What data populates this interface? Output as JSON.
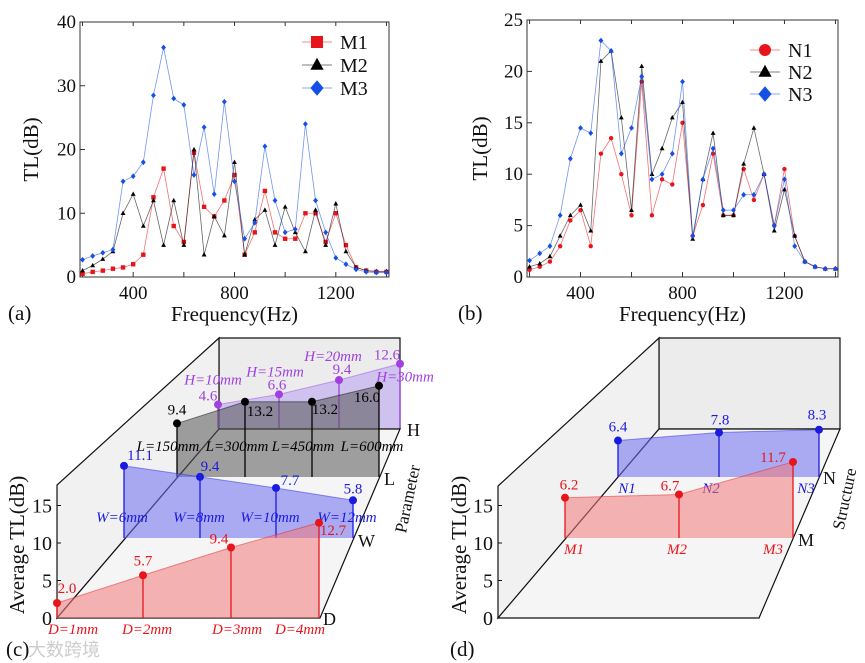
{
  "watermark": "大数跨境",
  "chart_data": [
    {
      "type": "line",
      "panel_label": "(a)",
      "title": "",
      "xlabel": "Frequency(Hz)",
      "ylabel": "TL(dB)",
      "xlim": [
        190,
        1410
      ],
      "ylim": [
        0,
        40
      ],
      "xticks": [
        400,
        800,
        1200
      ],
      "yticks": [
        0,
        10,
        20,
        30,
        40
      ],
      "legend": "top-right",
      "x": [
        200,
        240,
        280,
        320,
        360,
        400,
        440,
        480,
        520,
        560,
        600,
        640,
        680,
        720,
        760,
        800,
        840,
        880,
        920,
        960,
        1000,
        1040,
        1080,
        1120,
        1160,
        1200,
        1240,
        1280,
        1320,
        1360,
        1400
      ],
      "series": [
        {
          "name": "M1",
          "color": "#e8141b",
          "marker": "square",
          "values": [
            0.5,
            0.8,
            1.0,
            1.3,
            1.5,
            2,
            3.5,
            12.5,
            17,
            8,
            5.5,
            19.5,
            11,
            9.5,
            12,
            16,
            3.5,
            7,
            13.5,
            7,
            6,
            6,
            10,
            10,
            5.5,
            10,
            5,
            1.5,
            1,
            0.8,
            0.8
          ]
        },
        {
          "name": "M2",
          "color": "#000000",
          "marker": "triangle",
          "values": [
            1,
            1.8,
            2.8,
            4,
            10,
            13,
            8,
            12,
            5,
            12,
            5,
            20,
            3.5,
            9.5,
            6.5,
            18,
            3.5,
            9,
            10.5,
            5,
            11,
            7,
            4,
            10.5,
            5,
            11.5,
            4,
            1.5,
            1,
            0.9,
            0.9
          ]
        },
        {
          "name": "M3",
          "color": "#1450e6",
          "marker": "diamond",
          "values": [
            2.7,
            3.3,
            3.8,
            4.3,
            15,
            15.8,
            18,
            28.5,
            36,
            28,
            27,
            16,
            23.5,
            13,
            27.5,
            15,
            6,
            8.5,
            20.5,
            12,
            7,
            7.5,
            24,
            12,
            7,
            3,
            2,
            1.2,
            0.8,
            0.7,
            0.7
          ]
        }
      ]
    },
    {
      "type": "line",
      "panel_label": "(b)",
      "title": "",
      "xlabel": "Frequency(Hz)",
      "ylabel": "TL(dB)",
      "xlim": [
        190,
        1410
      ],
      "ylim": [
        0,
        25
      ],
      "xticks": [
        400,
        800,
        1200
      ],
      "yticks": [
        0,
        5,
        10,
        15,
        20,
        25
      ],
      "legend": "top-right",
      "x": [
        200,
        240,
        280,
        320,
        360,
        400,
        440,
        480,
        520,
        560,
        600,
        640,
        680,
        720,
        760,
        800,
        840,
        880,
        920,
        960,
        1000,
        1040,
        1080,
        1120,
        1160,
        1200,
        1240,
        1280,
        1320,
        1360,
        1400
      ],
      "series": [
        {
          "name": "N1",
          "color": "#e8141b",
          "marker": "circle",
          "values": [
            0.7,
            1,
            1.5,
            3,
            5.5,
            6.5,
            3,
            12,
            13.5,
            10,
            6,
            19,
            6,
            9.5,
            9,
            15,
            4,
            7,
            12,
            6,
            6,
            10.5,
            7.5,
            10,
            5,
            10.5,
            4,
            1.5,
            1,
            0.8,
            0.8
          ]
        },
        {
          "name": "N2",
          "color": "#000000",
          "marker": "triangle",
          "values": [
            1,
            1.3,
            2,
            4,
            6,
            7,
            4.5,
            21,
            22,
            15.5,
            6.5,
            20.5,
            10,
            12.5,
            15.5,
            17,
            3.7,
            9.5,
            14,
            6,
            6,
            11,
            14.5,
            10,
            4.5,
            8.5,
            4,
            1.5,
            1,
            0.8,
            0.8
          ]
        },
        {
          "name": "N3",
          "color": "#1450e6",
          "marker": "diamond",
          "values": [
            1.6,
            2.3,
            3,
            6,
            11.5,
            14.5,
            14,
            23,
            22,
            12,
            14.5,
            19.5,
            9.5,
            10,
            12,
            19,
            4,
            9.5,
            12.5,
            6.5,
            6.5,
            8,
            8,
            10,
            5,
            9.5,
            3,
            1.5,
            1,
            0.8,
            0.8
          ]
        }
      ]
    },
    {
      "type": "bar",
      "subtype": "3d-stem-area",
      "panel_label": "(c)",
      "ylabel": "Average TL(dB)",
      "depth_label": "Parameter",
      "ylim": [
        0,
        17.5
      ],
      "yticks": [
        0,
        5,
        10,
        15
      ],
      "series": [
        {
          "name": "H",
          "color": "#a040e0",
          "fill": "#b8a0f0",
          "categories": [
            "H=10mm",
            "H=15mm",
            "H=20mm",
            "H=30mm"
          ],
          "values": [
            4.6,
            6.6,
            9.4,
            12.6
          ],
          "value_labels": [
            "4.6",
            "6.6",
            "9.4",
            "12.6"
          ]
        },
        {
          "name": "L",
          "color": "#000000",
          "fill": "#555555",
          "categories": [
            "L=150mm",
            "L=300mm",
            "L=450mm",
            "L=600mm"
          ],
          "values": [
            9.4,
            13.2,
            13.2,
            16.0
          ],
          "value_labels": [
            "9.4",
            "13.2",
            "13.2",
            "16.0"
          ]
        },
        {
          "name": "W",
          "color": "#1a1ae0",
          "fill": "#6b6bf0",
          "categories": [
            "W=6mm",
            "W=8mm",
            "W=10mm",
            "W=12mm"
          ],
          "values": [
            11.1,
            9.4,
            7.7,
            5.8
          ],
          "value_labels": [
            "11.1",
            "9.4",
            "7.7",
            "5.8"
          ]
        },
        {
          "name": "D",
          "color": "#e8141b",
          "fill": "#f07878",
          "categories": [
            "D=1mm",
            "D=2mm",
            "D=3mm",
            "D=4mm"
          ],
          "values": [
            2.0,
            5.7,
            9.4,
            12.7
          ],
          "value_labels": [
            "2.0",
            "5.7",
            "9.4",
            "12.7"
          ]
        }
      ]
    },
    {
      "type": "bar",
      "subtype": "3d-stem-area",
      "panel_label": "(d)",
      "ylabel": "Average TL(dB)",
      "depth_label": "Structure",
      "ylim": [
        0,
        17.5
      ],
      "yticks": [
        0,
        5,
        10,
        15
      ],
      "series": [
        {
          "name": "N",
          "color": "#1a1ae0",
          "fill": "#6b6bf0",
          "categories": [
            "N1",
            "N2",
            "N3"
          ],
          "values": [
            6.4,
            7.8,
            8.3
          ],
          "value_labels": [
            "6.4",
            "7.8",
            "8.3"
          ]
        },
        {
          "name": "M",
          "color": "#e8141b",
          "fill": "#f07878",
          "categories": [
            "M1",
            "M2",
            "M3"
          ],
          "values": [
            6.2,
            6.7,
            11.7
          ],
          "value_labels": [
            "6.2",
            "6.7",
            "11.7"
          ]
        }
      ]
    }
  ]
}
